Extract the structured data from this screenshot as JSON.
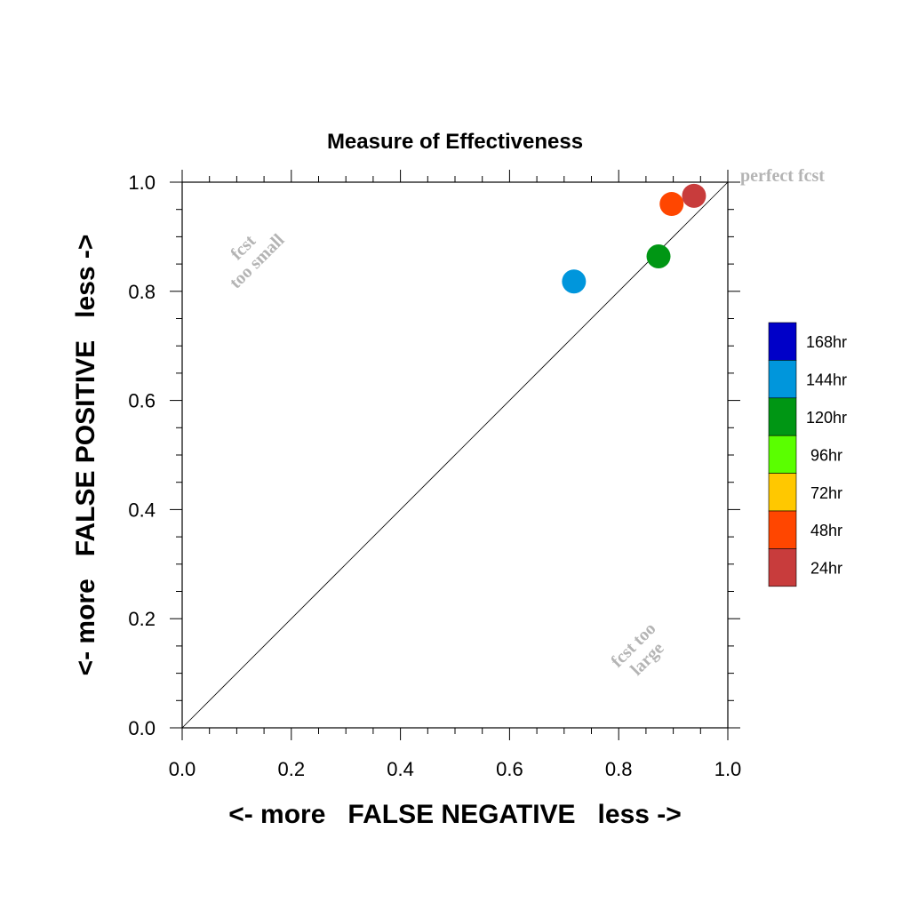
{
  "chart_data": {
    "type": "scatter",
    "title": "Measure of Effectiveness",
    "xlabel": "<- more   FALSE NEGATIVE   less ->",
    "ylabel": "<- more   FALSE POSITIVE   less ->",
    "xlim": [
      0,
      1
    ],
    "ylim": [
      0,
      1
    ],
    "xticks": [
      "0.0",
      "0.2",
      "0.4",
      "0.6",
      "0.8",
      "1.0"
    ],
    "yticks": [
      "0.0",
      "0.2",
      "0.4",
      "0.6",
      "0.8",
      "1.0"
    ],
    "grid": false,
    "diagonal_line": true,
    "legend_position": "right",
    "annotations": {
      "perfect": "perfect fcst",
      "too_small_1": "fcst",
      "too_small_2": "too small",
      "too_large_1": "fcst too",
      "too_large_2": "large"
    },
    "legend": [
      {
        "label": "168hr",
        "color": "#0000c8"
      },
      {
        "label": "144hr",
        "color": "#0096dc"
      },
      {
        "label": "120hr",
        "color": "#009614"
      },
      {
        "label": "96hr",
        "color": "#5aff00"
      },
      {
        "label": "72hr",
        "color": "#ffc800"
      },
      {
        "label": "48hr",
        "color": "#ff4600"
      },
      {
        "label": "24hr",
        "color": "#c83c3c"
      }
    ],
    "series": [
      {
        "name": "144hr",
        "color": "#0096dc",
        "x": 0.718,
        "y": 0.818
      },
      {
        "name": "120hr",
        "color": "#009614",
        "x": 0.873,
        "y": 0.864
      },
      {
        "name": "48hr",
        "color": "#ff4600",
        "x": 0.897,
        "y": 0.96
      },
      {
        "name": "24hr",
        "color": "#c83c3c",
        "x": 0.938,
        "y": 0.975
      }
    ]
  }
}
